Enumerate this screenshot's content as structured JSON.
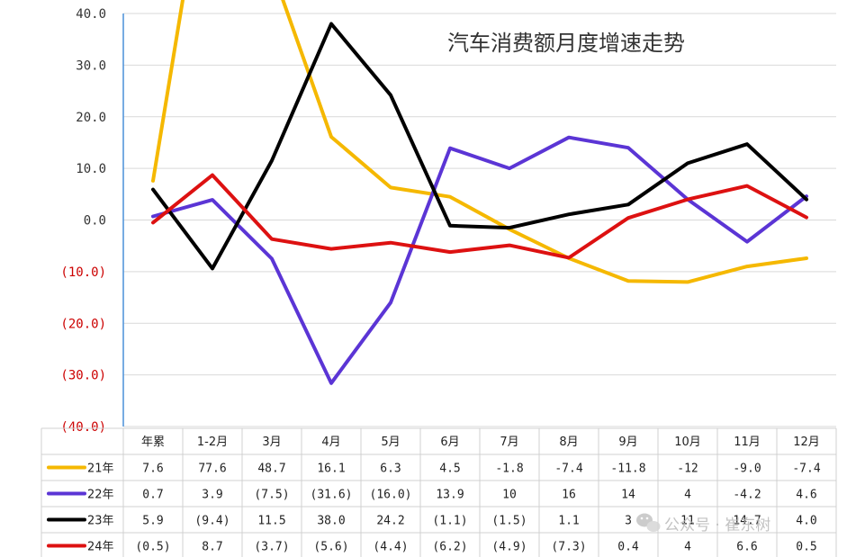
{
  "chart_data": {
    "type": "line",
    "title": "汽车消费额月度增速走势",
    "categories": [
      "年累",
      "1-2月",
      "3月",
      "4月",
      "5月",
      "6月",
      "7月",
      "8月",
      "9月",
      "10月",
      "11月",
      "12月"
    ],
    "ylim": [
      -40,
      40
    ],
    "yticks": [
      40,
      30,
      20,
      10,
      0,
      -10,
      -20,
      -30,
      -40
    ],
    "ytick_labels": [
      "40.0",
      "30.0",
      "20.0",
      "10.0",
      "0.0",
      "(10.0)",
      "(20.0)",
      "(30.0)",
      "(40.0)"
    ],
    "grid": true,
    "legend": "table-below",
    "series": [
      {
        "name": "21年",
        "color": "#f5b800",
        "values": [
          7.6,
          77.6,
          48.7,
          16.1,
          6.3,
          4.5,
          -1.8,
          -7.4,
          -11.8,
          -12,
          -9.0,
          -7.4
        ],
        "labels": [
          "7.6",
          "77.6",
          "48.7",
          "16.1",
          "6.3",
          "4.5",
          "-1.8",
          "-7.4",
          "-11.8",
          "-12",
          "-9.0",
          "-7.4"
        ]
      },
      {
        "name": "22年",
        "color": "#5b35d5",
        "values": [
          0.7,
          3.9,
          -7.5,
          -31.6,
          -16.0,
          13.9,
          10,
          16,
          14,
          4,
          -4.2,
          4.6
        ],
        "labels": [
          "0.7",
          "3.9",
          "(7.5)",
          "(31.6)",
          "(16.0)",
          "13.9",
          "10",
          "16",
          "14",
          "4",
          "-4.2",
          "4.6"
        ]
      },
      {
        "name": "23年",
        "color": "#000000",
        "values": [
          5.9,
          -9.4,
          11.5,
          38.0,
          24.2,
          -1.1,
          -1.5,
          1.1,
          3,
          11,
          14.7,
          4.0
        ],
        "labels": [
          "5.9",
          "(9.4)",
          "11.5",
          "38.0",
          "24.2",
          "(1.1)",
          "(1.5)",
          "1.1",
          "3",
          "11",
          "14.7",
          "4.0"
        ]
      },
      {
        "name": "24年",
        "color": "#dd1111",
        "values": [
          -0.5,
          8.7,
          -3.7,
          -5.6,
          -4.4,
          -6.2,
          -4.9,
          -7.3,
          0.4,
          4,
          6.6,
          0.5
        ],
        "labels": [
          "(0.5)",
          "8.7",
          "(3.7)",
          "(5.6)",
          "(4.4)",
          "(6.2)",
          "(4.9)",
          "(7.3)",
          "0.4",
          "4",
          "6.6",
          "0.5"
        ]
      }
    ]
  },
  "watermark": {
    "icon": "wechat-icon",
    "text": "公众号 · 崔东树"
  },
  "colors": {
    "negative_tick": "#cc0000",
    "positive_tick": "#333333",
    "grid": "#d9d9d9",
    "axis": "#4a90d9"
  }
}
